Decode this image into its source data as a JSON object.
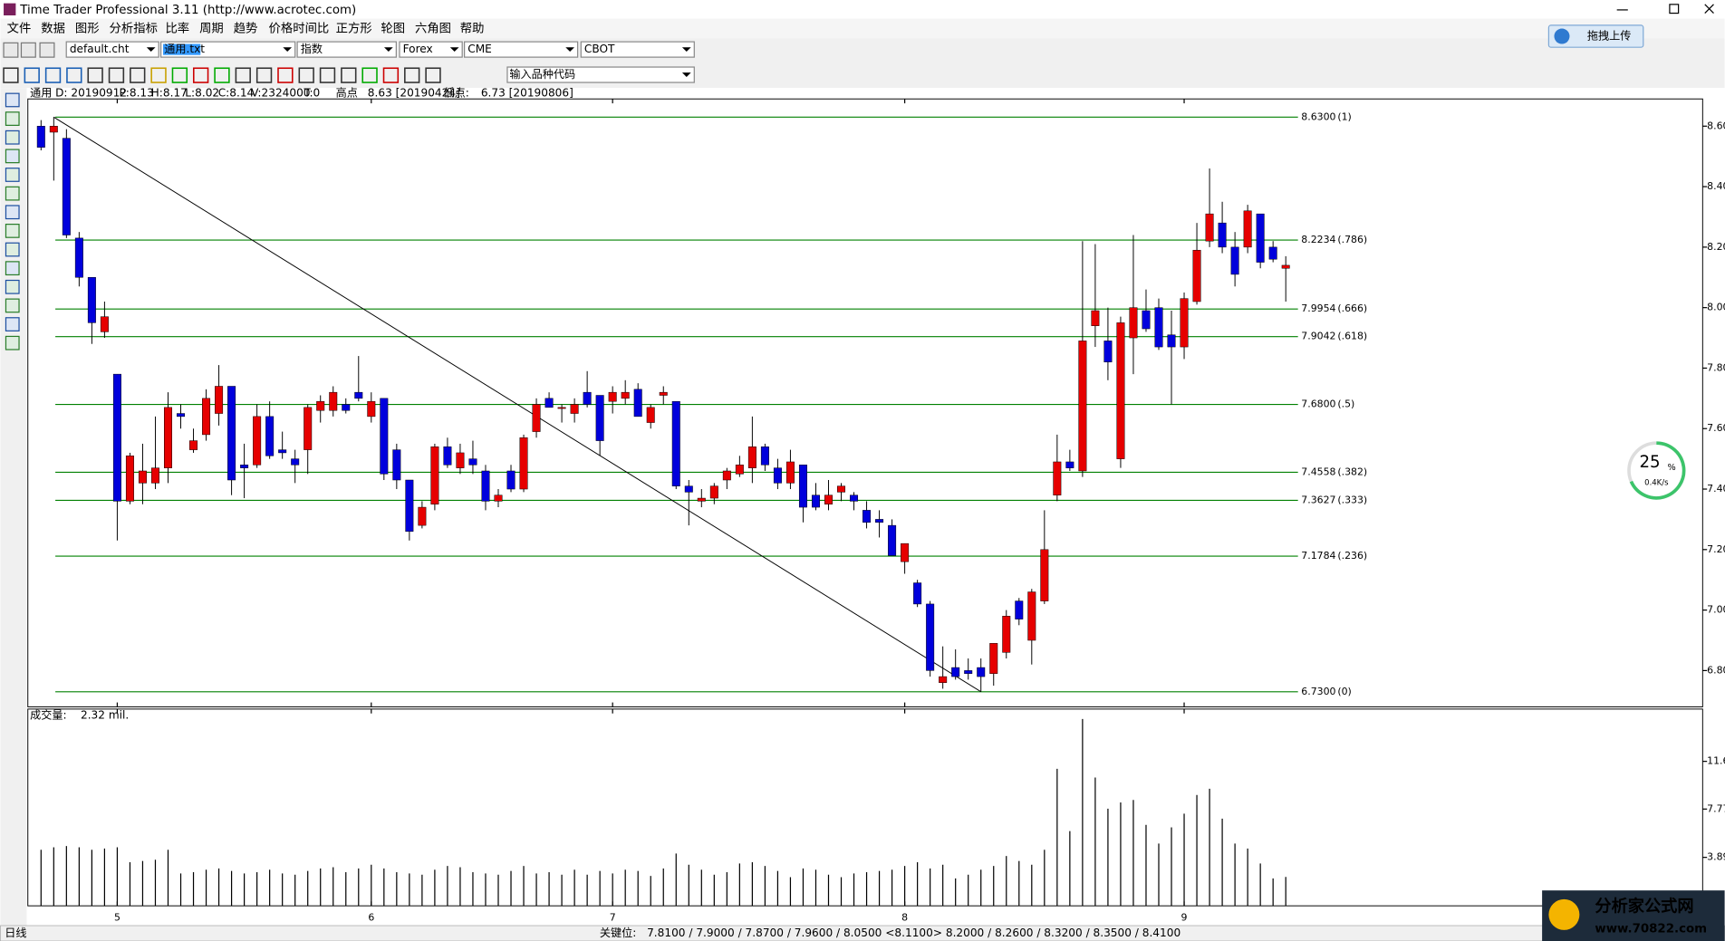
{
  "window": {
    "title": "Time Trader Professional 3.11 (http://www.acrotec.com)"
  },
  "menu": [
    "文件",
    "数据",
    "图形",
    "分析指标",
    "比率",
    "周期",
    "趋势",
    "价格时间比",
    "正方形",
    "轮图",
    "六角图",
    "帮助"
  ],
  "toolbar": {
    "files": [
      "default.cht",
      "通用.txt",
      "指数",
      "Forex",
      "CME",
      "CBOT"
    ],
    "symbol_input": "输入品种代码"
  },
  "upload_button": "拖拽上传",
  "info": {
    "label": "通用",
    "fields": [
      "D: 20190912",
      "P:8.13",
      "H:8.17",
      "L:8.02",
      "C:8.14",
      "V:2324000",
      "T:0"
    ],
    "high_label": "高点",
    "high": "8.63 [20190424]",
    "low_label": "低点:",
    "low": "6.73 [20190806]"
  },
  "chart_data": [
    {
      "type": "candlestick",
      "categories": [
        null,
        null,
        null,
        null,
        null,
        null,
        "5",
        null,
        null,
        null,
        null,
        null,
        null,
        null,
        null,
        null,
        null,
        null,
        null,
        null,
        null,
        null,
        null,
        null,
        null,
        null,
        "6",
        null,
        null,
        null,
        null,
        null,
        null,
        null,
        null,
        null,
        null,
        null,
        null,
        null,
        null,
        null,
        null,
        null,
        null,
        "7",
        null,
        null,
        null,
        null,
        null,
        null,
        null,
        null,
        null,
        null,
        null,
        null,
        null,
        null,
        null,
        null,
        null,
        null,
        null,
        null,
        null,
        null,
        "8",
        null,
        null,
        null,
        null,
        null,
        null,
        null,
        null,
        null,
        null,
        null,
        null,
        null,
        null,
        null,
        null,
        null,
        null,
        null,
        null,
        null,
        "9",
        null,
        null,
        null,
        null,
        null,
        null,
        null,
        null
      ],
      "open": [
        8.6,
        8.58,
        8.56,
        8.23,
        8.1,
        7.92,
        7.78,
        7.36,
        7.42,
        7.42,
        7.47,
        7.65,
        7.53,
        7.58,
        7.65,
        7.74,
        7.48,
        7.48,
        7.64,
        7.53,
        7.5,
        7.53,
        7.66,
        7.66,
        7.68,
        7.72,
        7.64,
        7.7,
        7.53,
        7.43,
        7.28,
        7.35,
        7.54,
        7.47,
        7.5,
        7.46,
        7.36,
        7.46,
        7.4,
        7.59,
        7.7,
        7.67,
        7.65,
        7.72,
        7.71,
        7.69,
        7.7,
        7.73,
        7.62,
        7.71,
        7.69,
        7.41,
        7.36,
        7.37,
        7.43,
        7.45,
        7.47,
        7.54,
        7.47,
        7.42,
        7.48,
        7.38,
        7.35,
        7.39,
        7.38,
        7.33,
        7.3,
        7.28,
        7.16,
        7.09,
        7.02,
        6.76,
        6.81,
        6.8,
        6.81,
        6.79,
        6.86,
        7.03,
        6.9,
        7.03,
        7.38,
        7.49,
        7.46,
        7.94,
        7.89,
        7.5,
        7.9,
        7.99,
        8.0,
        7.91,
        7.87,
        8.02,
        8.22,
        8.28,
        8.2,
        8.2,
        8.31,
        8.2,
        8.13
      ],
      "high": [
        8.62,
        8.63,
        8.59,
        8.25,
        8.1,
        8.02,
        7.78,
        7.52,
        7.55,
        7.64,
        7.72,
        7.68,
        7.6,
        7.73,
        7.81,
        7.74,
        7.55,
        7.68,
        7.69,
        7.59,
        7.53,
        7.68,
        7.71,
        7.74,
        7.7,
        7.84,
        7.72,
        7.7,
        7.55,
        7.43,
        7.36,
        7.55,
        7.57,
        7.55,
        7.56,
        7.48,
        7.4,
        7.48,
        7.58,
        7.7,
        7.72,
        7.68,
        7.7,
        7.79,
        7.71,
        7.74,
        7.76,
        7.75,
        7.68,
        7.74,
        7.69,
        7.43,
        7.4,
        7.42,
        7.47,
        7.51,
        7.64,
        7.55,
        7.5,
        7.53,
        7.48,
        7.42,
        7.43,
        7.42,
        7.39,
        7.36,
        7.33,
        7.3,
        7.22,
        7.1,
        7.03,
        6.88,
        6.87,
        6.84,
        6.84,
        6.89,
        7.0,
        7.04,
        7.07,
        7.33,
        7.58,
        7.53,
        8.22,
        8.21,
        8.0,
        7.97,
        8.24,
        8.06,
        8.03,
        7.99,
        8.05,
        8.28,
        8.46,
        8.35,
        8.25,
        8.34,
        8.31,
        8.22,
        8.17
      ],
      "low": [
        8.52,
        8.42,
        8.23,
        8.07,
        7.88,
        7.9,
        7.23,
        7.35,
        7.35,
        7.4,
        7.42,
        7.6,
        7.52,
        7.56,
        7.61,
        7.38,
        7.37,
        7.47,
        7.5,
        7.5,
        7.42,
        7.45,
        7.62,
        7.64,
        7.65,
        7.69,
        7.62,
        7.43,
        7.4,
        7.23,
        7.27,
        7.33,
        7.47,
        7.45,
        7.45,
        7.33,
        7.34,
        7.39,
        7.39,
        7.57,
        7.67,
        7.62,
        7.62,
        7.67,
        7.51,
        7.65,
        7.68,
        7.64,
        7.6,
        7.68,
        7.4,
        7.28,
        7.34,
        7.35,
        7.4,
        7.44,
        7.42,
        7.46,
        7.4,
        7.4,
        7.29,
        7.33,
        7.33,
        7.36,
        7.33,
        7.27,
        7.24,
        7.18,
        7.12,
        7.01,
        6.78,
        6.74,
        6.77,
        6.77,
        6.73,
        6.75,
        6.84,
        6.95,
        6.82,
        7.02,
        7.36,
        7.46,
        7.44,
        7.87,
        7.76,
        7.47,
        7.78,
        7.92,
        7.86,
        7.68,
        7.83,
        8.01,
        8.2,
        8.18,
        8.07,
        8.18,
        8.13,
        8.15,
        8.02
      ],
      "close": [
        8.53,
        8.6,
        8.24,
        8.1,
        7.95,
        7.97,
        7.36,
        7.51,
        7.46,
        7.47,
        7.67,
        7.64,
        7.56,
        7.7,
        7.74,
        7.43,
        7.47,
        7.64,
        7.51,
        7.52,
        7.48,
        7.67,
        7.69,
        7.72,
        7.66,
        7.7,
        7.69,
        7.45,
        7.43,
        7.26,
        7.34,
        7.54,
        7.48,
        7.52,
        7.48,
        7.36,
        7.38,
        7.4,
        7.57,
        7.68,
        7.67,
        7.67,
        7.68,
        7.68,
        7.56,
        7.72,
        7.72,
        7.64,
        7.67,
        7.72,
        7.41,
        7.39,
        7.37,
        7.41,
        7.46,
        7.48,
        7.54,
        7.48,
        7.42,
        7.49,
        7.34,
        7.34,
        7.38,
        7.41,
        7.36,
        7.29,
        7.29,
        7.18,
        7.22,
        7.02,
        6.8,
        6.78,
        6.78,
        6.79,
        6.78,
        6.89,
        6.98,
        6.97,
        7.06,
        7.2,
        7.49,
        7.47,
        7.89,
        7.99,
        7.82,
        7.95,
        8.0,
        7.93,
        7.87,
        7.87,
        8.03,
        8.19,
        8.31,
        8.2,
        8.11,
        8.32,
        8.15,
        8.16,
        8.14
      ],
      "up_color": "#e60000",
      "down_color": "#0000dc",
      "ylim": [
        6.68,
        8.69
      ],
      "yticks": [
        {
          "value": 8.6,
          "label": "8.60"
        },
        {
          "value": 8.4,
          "label": "8.40"
        },
        {
          "value": 8.2,
          "label": "8.20"
        },
        {
          "value": 8.0,
          "label": "8.00"
        },
        {
          "value": 7.8,
          "label": "7.80"
        },
        {
          "value": 7.6,
          "label": "7.60"
        },
        {
          "value": 7.4,
          "label": "7.40"
        },
        {
          "value": 7.2,
          "label": "7.20"
        },
        {
          "value": 7.0,
          "label": "7.00"
        },
        {
          "value": 6.8,
          "label": "6.80"
        }
      ],
      "levels": [
        {
          "value": 8.63,
          "label": "8.6300",
          "ratio": "(1)"
        },
        {
          "value": 8.2234,
          "label": "8.2234",
          "ratio": "(.786)"
        },
        {
          "value": 7.9954,
          "label": "7.9954",
          "ratio": "(.666)"
        },
        {
          "value": 7.9042,
          "label": "7.9042",
          "ratio": "(.618)"
        },
        {
          "value": 7.68,
          "label": "7.6800",
          "ratio": "(.5)"
        },
        {
          "value": 7.4558,
          "label": "7.4558",
          "ratio": "(.382)"
        },
        {
          "value": 7.3627,
          "label": "7.3627",
          "ratio": "(.333)"
        },
        {
          "value": 7.1784,
          "label": "7.1784",
          "ratio": "(.236)"
        },
        {
          "value": 6.73,
          "label": "6.7300",
          "ratio": "(0)"
        }
      ],
      "level_color": "#008000"
    },
    {
      "type": "bar",
      "title": "成交量:",
      "last_label": "2.32 mil.",
      "values": [
        4.5,
        4.7,
        4.8,
        4.7,
        4.5,
        4.6,
        4.7,
        3.5,
        3.6,
        3.7,
        4.5,
        2.6,
        2.7,
        2.9,
        3.0,
        2.8,
        2.6,
        2.7,
        2.9,
        2.6,
        2.5,
        2.8,
        3.0,
        3.1,
        2.7,
        3.0,
        3.3,
        3.0,
        2.7,
        2.6,
        2.5,
        2.9,
        3.2,
        3.1,
        2.7,
        2.6,
        2.5,
        2.8,
        3.2,
        2.6,
        2.7,
        2.5,
        2.9,
        2.5,
        2.8,
        2.6,
        2.9,
        2.8,
        2.4,
        3.0,
        4.2,
        3.3,
        2.9,
        2.5,
        2.7,
        3.4,
        3.5,
        3.2,
        2.8,
        2.3,
        3.0,
        2.9,
        2.5,
        2.3,
        2.6,
        2.7,
        2.8,
        2.9,
        3.2,
        3.5,
        3.0,
        3.3,
        2.2,
        2.5,
        2.9,
        3.2,
        4.0,
        3.6,
        3.3,
        4.5,
        11.0,
        6.0,
        15.0,
        10.3,
        7.8,
        8.3,
        8.5,
        6.5,
        5.0,
        6.3,
        7.4,
        8.9,
        9.4,
        7.0,
        5.0,
        4.6,
        3.4,
        2.2,
        2.32
      ],
      "color": "#000000",
      "ylim": [
        0,
        15.8
      ],
      "yticks": [
        3.89,
        7.77,
        11.6
      ]
    }
  ],
  "network": {
    "percent": "25",
    "unit": "%",
    "speed": "0.4K/s"
  },
  "status": {
    "left": "日线",
    "key_label": "关键位:",
    "key_levels": "7.8100 / 7.9000 / 7.8700 / 7.9600 / 8.0500 <8.1100> 8.2000 / 8.2600 / 8.3200 / 8.3500 / 8.4100"
  },
  "watermark": {
    "name": "分析家公式网",
    "url": "www.70822.com"
  }
}
